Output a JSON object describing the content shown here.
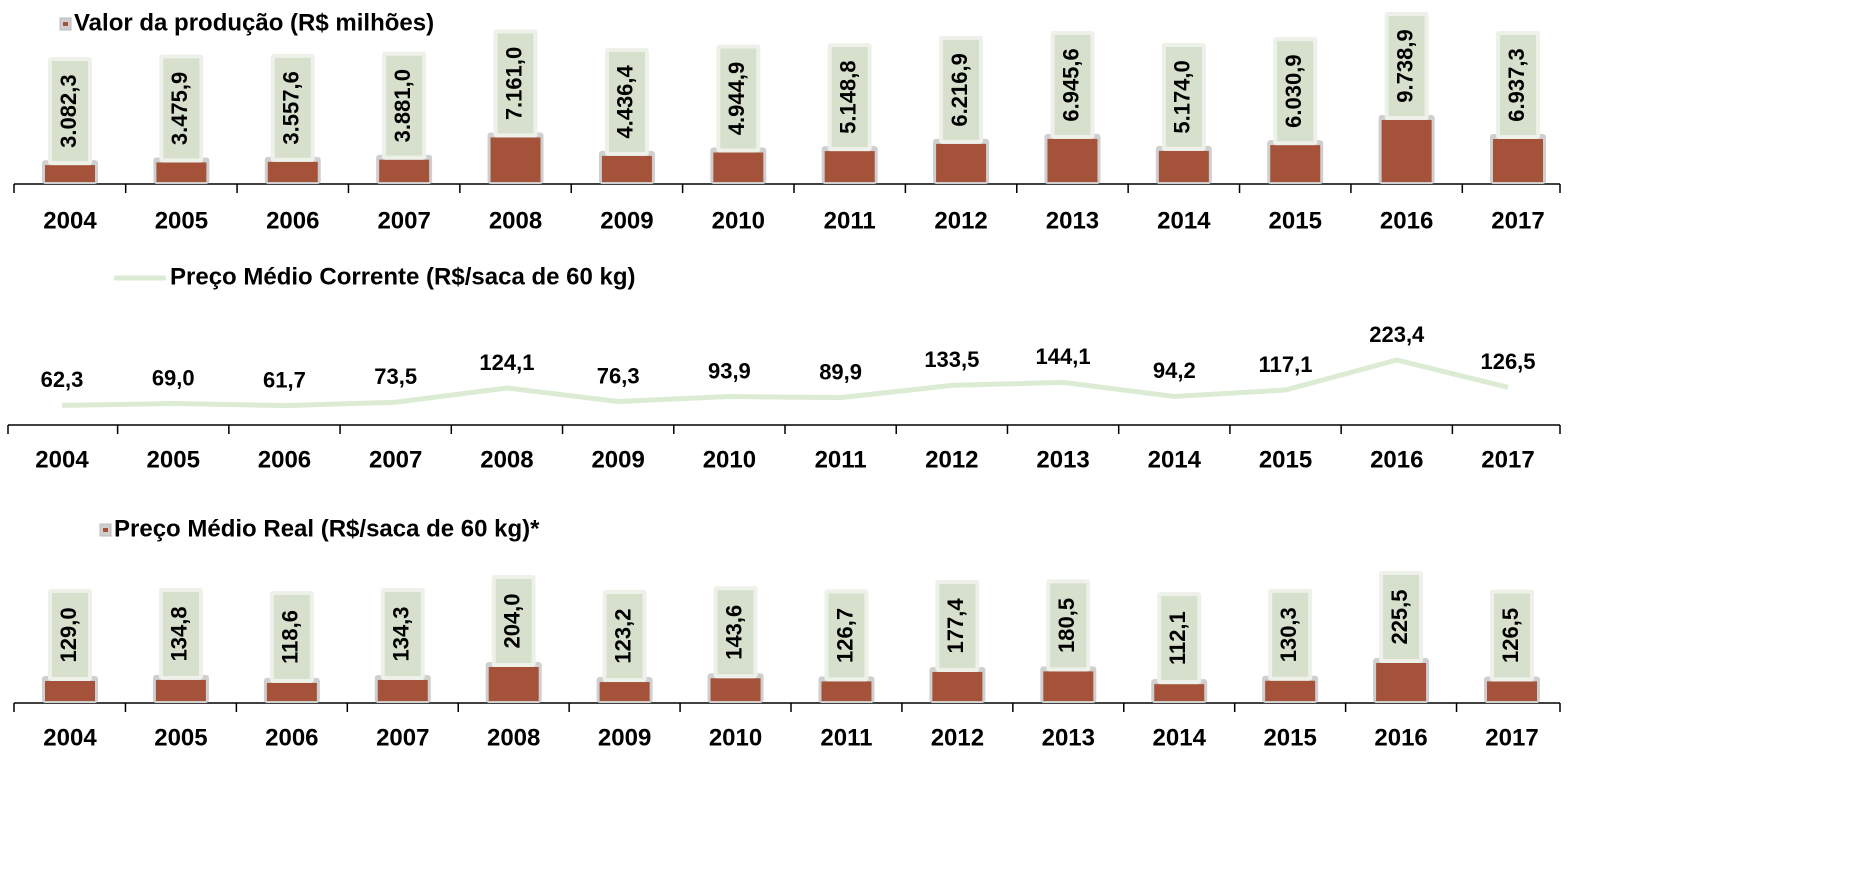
{
  "chart_data": [
    {
      "type": "bar",
      "categories": [
        "2004",
        "2005",
        "2006",
        "2007",
        "2008",
        "2009",
        "2010",
        "2011",
        "2012",
        "2013",
        "2014",
        "2015",
        "2016",
        "2017"
      ],
      "series": [
        {
          "name": "Valor da produção (R$ milhões)",
          "color": "#a4533a",
          "values": [
            3082.3,
            3475.9,
            3557.6,
            3881.0,
            7161.0,
            4436.4,
            4944.9,
            5148.8,
            6216.9,
            6945.6,
            5174.0,
            6030.9,
            9738.9,
            6937.3
          ],
          "value_labels": [
            "3.082,3",
            "3.475,9",
            "3.557,6",
            "3.881,0",
            "7.161,0",
            "4.436,4",
            "4.944,9",
            "5.148,8",
            "6.216,9",
            "6.945,6",
            "5.174,0",
            "6.030,9",
            "9.738,9",
            "6.937,3"
          ]
        }
      ]
    },
    {
      "type": "line",
      "categories": [
        "2004",
        "2005",
        "2006",
        "2007",
        "2008",
        "2009",
        "2010",
        "2011",
        "2012",
        "2013",
        "2014",
        "2015",
        "2016",
        "2017"
      ],
      "series": [
        {
          "name": "Preço Médio Corrente (R$/saca de 60 kg)",
          "color": "#dcebd3",
          "values": [
            62.3,
            69.0,
            61.7,
            73.5,
            124.1,
            76.3,
            93.9,
            89.9,
            133.5,
            144.1,
            94.2,
            117.1,
            223.4,
            126.5
          ],
          "value_labels": [
            "62,3",
            "69,0",
            "61,7",
            "73,5",
            "124,1",
            "76,3",
            "93,9",
            "89,9",
            "133,5",
            "144,1",
            "94,2",
            "117,1",
            "223,4",
            "126,5"
          ]
        }
      ]
    },
    {
      "type": "bar",
      "categories": [
        "2004",
        "2005",
        "2006",
        "2007",
        "2008",
        "2009",
        "2010",
        "2011",
        "2012",
        "2013",
        "2014",
        "2015",
        "2016",
        "2017"
      ],
      "series": [
        {
          "name": "Preço Médio Real (R$/saca de 60 kg)*",
          "color": "#a4533a",
          "values": [
            129.0,
            134.8,
            118.6,
            134.3,
            204.0,
            123.2,
            143.6,
            126.7,
            177.4,
            180.5,
            112.1,
            130.3,
            225.5,
            126.5
          ],
          "value_labels": [
            "129,0",
            "134,8",
            "118,6",
            "134,3",
            "204,0",
            "123,2",
            "143,6",
            "126,7",
            "177,4",
            "180,5",
            "112,1",
            "130,3",
            "225,5",
            "126,5"
          ]
        }
      ]
    }
  ]
}
